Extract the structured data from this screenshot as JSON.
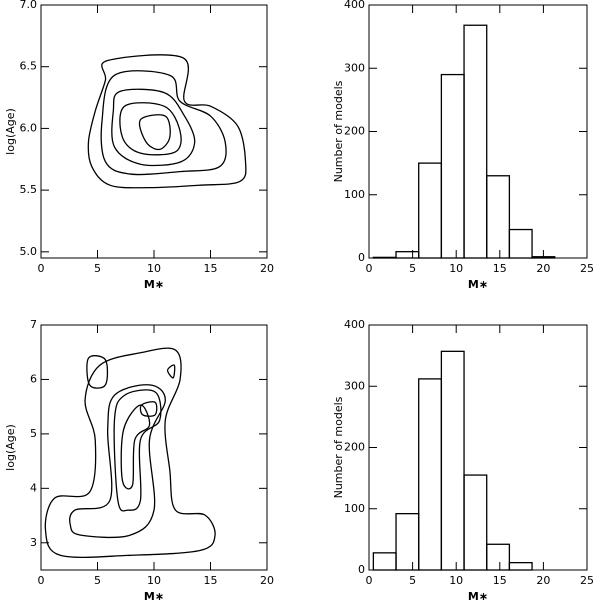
{
  "chart_data": [
    {
      "type": "contour",
      "xlabel": "M∗",
      "ylabel": "log(Age)",
      "xlim": [
        0,
        20
      ],
      "xticks": [
        0,
        5,
        10,
        15,
        20
      ],
      "ylim": [
        4.95,
        7.0
      ],
      "yticks": [
        {
          "value": 5,
          "label": "5.0"
        },
        {
          "value": 5.5,
          "label": "5.5"
        },
        {
          "value": 6,
          "label": "6.0"
        },
        {
          "value": 6.5,
          "label": "6.5"
        },
        {
          "value": 7,
          "label": "7.0"
        }
      ],
      "color": "#000000",
      "contours": [
        {
          "x": [
            5.9,
            12.6,
            12.7,
            15.0,
            17.4,
            18.1,
            17.6,
            14.1,
            9.6,
            6.1,
            4.5,
            4.2,
            4.8,
            5.7
          ],
          "y": [
            6.55,
            6.57,
            6.22,
            6.18,
            6.02,
            5.73,
            5.57,
            5.54,
            5.52,
            5.54,
            5.69,
            5.89,
            6.14,
            6.39
          ]
        },
        {
          "x": [
            6.5,
            11.4,
            12.3,
            15.0,
            16.3,
            15.8,
            12.3,
            7.9,
            5.7,
            5.4
          ],
          "y": [
            6.43,
            6.43,
            6.22,
            6.1,
            5.89,
            5.69,
            5.65,
            5.63,
            5.73,
            6.06
          ]
        },
        {
          "x": [
            7.0,
            10.9,
            12.7,
            13.6,
            12.4,
            8.8,
            6.5,
            6.4
          ],
          "y": [
            6.3,
            6.29,
            6.1,
            5.89,
            5.73,
            5.71,
            5.85,
            6.14
          ]
        },
        {
          "x": [
            7.4,
            10.9,
            12.3,
            11.9,
            8.8,
            7.2
          ],
          "y": [
            6.18,
            6.18,
            5.98,
            5.81,
            5.8,
            5.93
          ]
        },
        {
          "x": [
            8.8,
            11.0,
            11.4,
            10.5,
            9.3
          ],
          "y": [
            6.07,
            6.1,
            5.93,
            5.83,
            5.89
          ]
        }
      ]
    },
    {
      "type": "histogram",
      "xlabel": "M∗",
      "ylabel": "Number of models",
      "xlim": [
        0,
        25
      ],
      "xticks": [
        0,
        5,
        10,
        15,
        20,
        25
      ],
      "ylim": [
        0,
        400
      ],
      "yticks": [
        0,
        100,
        200,
        300,
        400
      ],
      "color": "#000000",
      "bins": [
        0.5,
        3.1,
        5.7,
        8.3,
        10.9,
        13.5,
        16.1,
        18.7,
        21.3,
        23.9
      ],
      "values": [
        1,
        10,
        150,
        290,
        368,
        130,
        45,
        2,
        0
      ]
    },
    {
      "type": "contour",
      "xlabel": "M∗",
      "ylabel": "log(Age)",
      "xlim": [
        0,
        20
      ],
      "xticks": [
        0,
        5,
        10,
        15,
        20
      ],
      "ylim": [
        2.5,
        7
      ],
      "yticks": [
        3,
        4,
        5,
        6,
        7
      ],
      "color": "#000000",
      "contours": [
        {
          "x": [
            1.2,
            4.3,
            4.8,
            3.9,
            5.2,
            8.8,
            11.9,
            12.3,
            11.0,
            11.4,
            11.9,
            14.5,
            15.4,
            14.1,
            7.9,
            1.7,
            0.4
          ],
          "y": [
            3.82,
            3.93,
            4.89,
            5.62,
            6.26,
            6.49,
            6.54,
            5.99,
            5.25,
            4.33,
            3.6,
            3.51,
            3.14,
            2.86,
            2.77,
            2.77,
            3.23
          ]
        },
        {
          "x": [
            3.0,
            6.1,
            5.9,
            6.5,
            9.6,
            11.0,
            9.6,
            10.0,
            7.9,
            3.5,
            2.6
          ],
          "y": [
            3.6,
            3.78,
            5.07,
            5.71,
            5.9,
            5.62,
            4.89,
            3.6,
            3.14,
            3.14,
            3.32
          ]
        },
        {
          "x": [
            6.8,
            6.5,
            7.4,
            10.1,
            10.5,
            8.8,
            8.8,
            7.7
          ],
          "y": [
            3.78,
            5.25,
            5.71,
            5.77,
            5.25,
            4.89,
            3.78,
            3.6
          ]
        },
        {
          "x": [
            7.2,
            7.3,
            8.8,
            9.6,
            8.3,
            8.1
          ],
          "y": [
            4.15,
            5.07,
            5.53,
            5.16,
            4.89,
            4.06
          ]
        },
        {
          "x": [
            8.9,
            10.1,
            10.1,
            9.0
          ],
          "y": [
            5.53,
            5.58,
            5.35,
            5.35
          ]
        },
        {
          "x": [
            4.2,
            5.7,
            5.7,
            4.3
          ],
          "y": [
            6.39,
            6.36,
            5.9,
            5.9
          ]
        },
        {
          "x": [
            11.2,
            11.8,
            11.7
          ],
          "y": [
            6.17,
            6.26,
            6.03
          ]
        }
      ]
    },
    {
      "type": "histogram",
      "xlabel": "M∗",
      "ylabel": "Number of models",
      "xlim": [
        0,
        25
      ],
      "xticks": [
        0,
        5,
        10,
        15,
        20,
        25
      ],
      "ylim": [
        0,
        400
      ],
      "yticks": [
        0,
        100,
        200,
        300,
        400
      ],
      "color": "#000000",
      "bins": [
        0.5,
        3.1,
        5.7,
        8.3,
        10.9,
        13.5,
        16.1,
        18.7,
        21.3,
        23.9
      ],
      "values": [
        28,
        92,
        312,
        357,
        155,
        42,
        12,
        0,
        0
      ]
    }
  ]
}
